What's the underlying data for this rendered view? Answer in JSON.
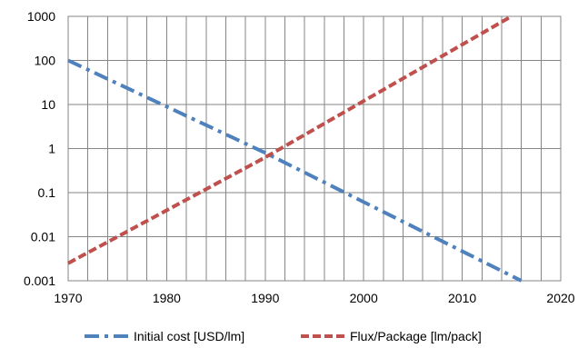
{
  "chart_data": {
    "type": "line",
    "title": "",
    "xlabel": "",
    "ylabel": "",
    "x_scale": "linear",
    "y_scale": "log",
    "xlim": [
      1970,
      2020
    ],
    "ylim": [
      0.001,
      1000
    ],
    "x_ticks": [
      "1970",
      "1980",
      "1990",
      "2000",
      "2010",
      "2020"
    ],
    "y_ticks": [
      "0.001",
      "0.01",
      "0.1",
      "1",
      "10",
      "100",
      "1000"
    ],
    "y_tick_values": [
      0.001,
      0.01,
      0.1,
      1,
      10,
      100,
      1000
    ],
    "grid": true,
    "legend_position": "bottom",
    "series": [
      {
        "name": "Initial cost [USD/lm]",
        "color": "#4F81BD",
        "line_style": "dash-dot",
        "x": [
          1970,
          1990,
          2016
        ],
        "y": [
          100,
          0.8,
          0.001
        ]
      },
      {
        "name": "Flux/Package [lm/pack]",
        "color": "#C0504D",
        "line_style": "dash",
        "x": [
          1970,
          1990,
          2015
        ],
        "y": [
          0.0025,
          0.63,
          1000
        ]
      }
    ]
  }
}
